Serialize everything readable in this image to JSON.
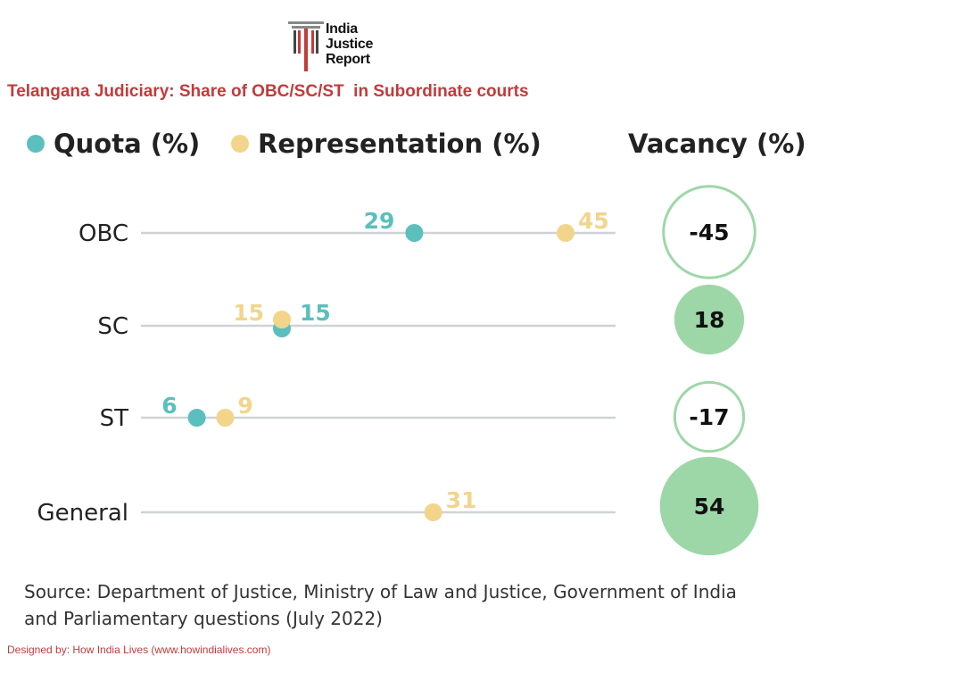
{
  "brand": {
    "logo_lines": [
      "India",
      "Justice",
      "Report"
    ]
  },
  "colors": {
    "quota": "#5bbfbd",
    "representation": "#f2d58b",
    "vacancy_positive": "#9dd7a8",
    "vacancy_negative_stroke": "#9dd7a8",
    "title": "#c23b3b",
    "gridline": "#cfd3d6"
  },
  "chart_data": {
    "type": "dot-plot",
    "title": "Telangana Judiciary: Share of OBC/SC/ST  in Subordinate courts",
    "legend": {
      "quota": "Quota (%)",
      "representation": "Representation (%)",
      "vacancy": "Vacancy (%)"
    },
    "categories": [
      "OBC",
      "SC",
      "ST",
      "General"
    ],
    "series": [
      {
        "name": "Quota (%)",
        "key": "quota",
        "values": [
          29,
          15,
          6,
          null
        ]
      },
      {
        "name": "Representation (%)",
        "key": "representation",
        "values": [
          45,
          15,
          9,
          31
        ]
      }
    ],
    "vacancy": [
      -45,
      18,
      -17,
      54
    ],
    "xlim": [
      0,
      50
    ]
  },
  "footer": {
    "source_line1": "Source: Department of Justice, Ministry of Law and Justice, Government of India",
    "source_line2": "and Parliamentary questions (July 2022)",
    "credit": "Designed by: How India Lives (www.howindialives.com)"
  }
}
